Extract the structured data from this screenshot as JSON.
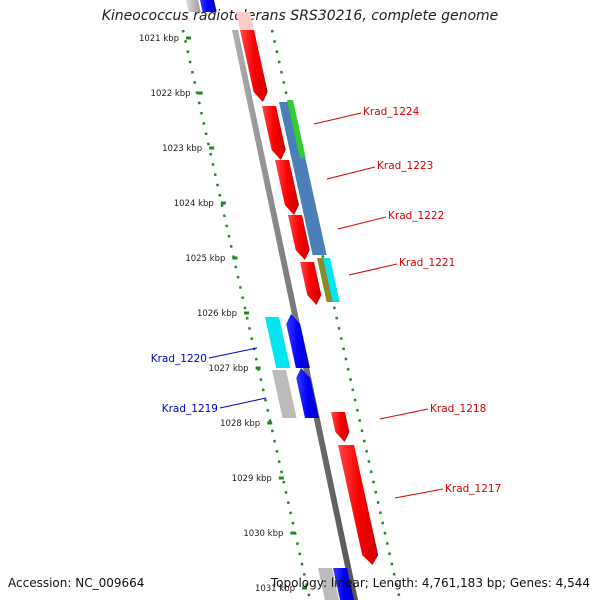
{
  "title": "Kineococcus radiotolerans SRS30216, complete genome",
  "footer": {
    "accession": "Accession: NC_009664",
    "summary": "Topology: linear; Length: 4,761,183 bp; Genes: 4,544"
  },
  "ruler": [
    {
      "label": "1021 kbp"
    },
    {
      "label": "1022 kbp"
    },
    {
      "label": "1023 kbp"
    },
    {
      "label": "1024 kbp"
    },
    {
      "label": "1025 kbp"
    },
    {
      "label": "1026 kbp"
    },
    {
      "label": "1027 kbp"
    },
    {
      "label": "1028 kbp"
    },
    {
      "label": "1029 kbp"
    },
    {
      "label": "1030 kbp"
    },
    {
      "label": "1031 kbp"
    }
  ],
  "gene_labels": [
    {
      "text": "Krad_1224",
      "color": "#dd0000"
    },
    {
      "text": "Krad_1223",
      "color": "#dd0000"
    },
    {
      "text": "Krad_1222",
      "color": "#dd0000"
    },
    {
      "text": "Krad_1221",
      "color": "#dd0000"
    },
    {
      "text": "Krad_1220",
      "color": "#0000cc"
    },
    {
      "text": "Krad_1219",
      "color": "#0000cc"
    },
    {
      "text": "Krad_1218",
      "color": "#dd0000"
    },
    {
      "text": "Krad_1217",
      "color": "#dd0000"
    }
  ],
  "colors": {
    "forward_gene": "#ff0000",
    "reverse_gene": "#0000ff",
    "backbone": "#888888",
    "ruler_ticks": "#228822",
    "feature_green": "#33cc33",
    "feature_steelblue": "#4a7fb8",
    "feature_cyan": "#00e5ee",
    "feature_olive": "#8a8a2a",
    "feature_gray": "#bbbbbb"
  }
}
